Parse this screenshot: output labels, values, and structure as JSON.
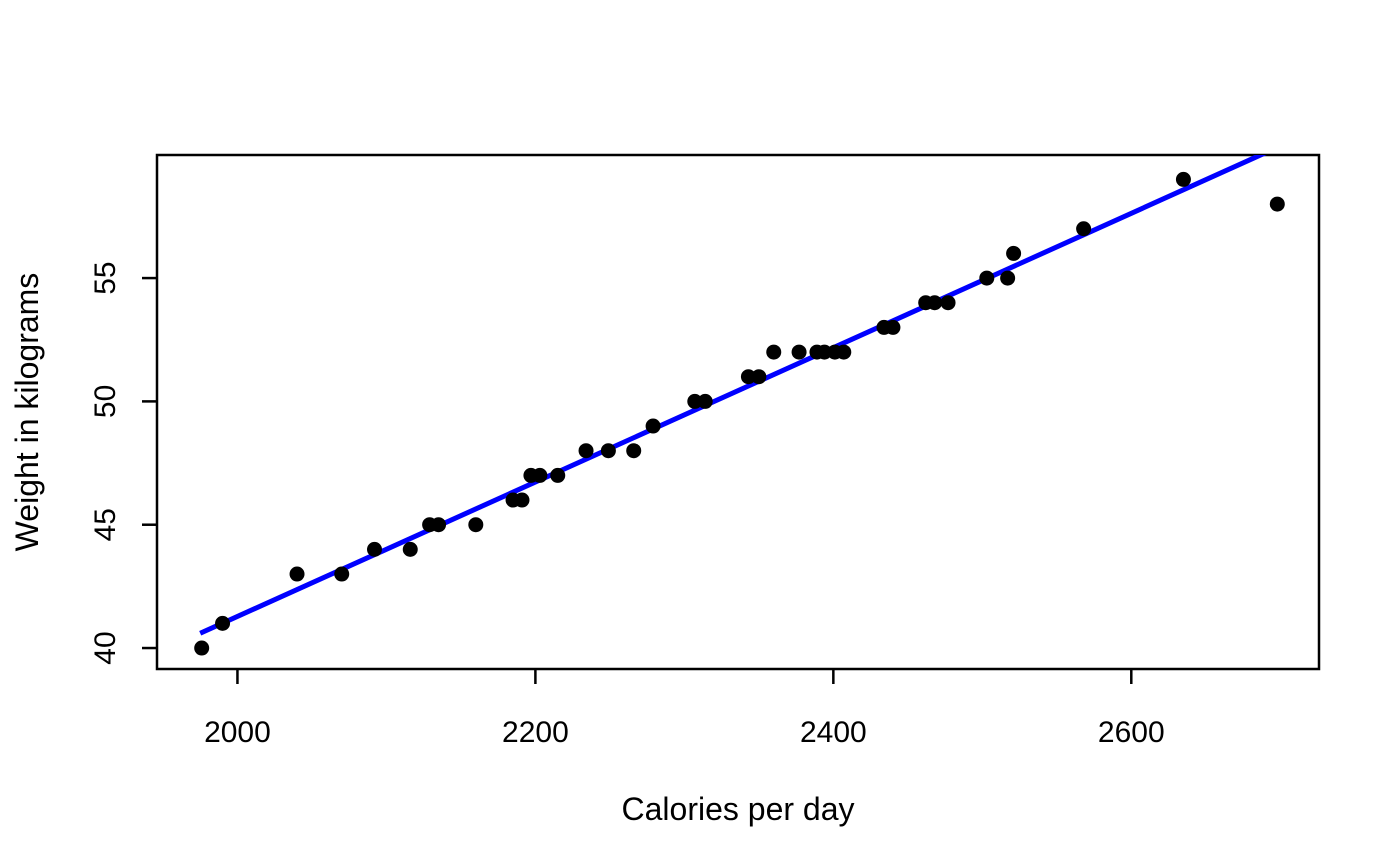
{
  "chart_data": {
    "type": "scatter",
    "title": "",
    "xlabel": "Calories per day",
    "ylabel": "Weight in kilograms",
    "x_ticks": [
      2000,
      2200,
      2400,
      2600
    ],
    "y_ticks": [
      40,
      45,
      50,
      55
    ],
    "xlim": [
      1946,
      2726
    ],
    "ylim": [
      39.15,
      59.99
    ],
    "grid": "off",
    "legend": "none",
    "point_color": "#000000",
    "point_radius": 7.5,
    "fit_line_color": "#0000ff",
    "fit_line_width": 5,
    "fit_line": {
      "x1": 1975,
      "y1": 40.6,
      "x2": 2700,
      "y2": 60.35
    },
    "points": [
      [
        1976,
        40
      ],
      [
        1990,
        41
      ],
      [
        2040,
        43
      ],
      [
        2070,
        43
      ],
      [
        2092,
        44
      ],
      [
        2116,
        44
      ],
      [
        2129,
        45
      ],
      [
        2135,
        45
      ],
      [
        2160,
        45
      ],
      [
        2185,
        46
      ],
      [
        2191,
        46
      ],
      [
        2197,
        47
      ],
      [
        2203,
        47
      ],
      [
        2215,
        47
      ],
      [
        2234,
        48
      ],
      [
        2249,
        48
      ],
      [
        2266,
        48
      ],
      [
        2279,
        49
      ],
      [
        2307,
        50
      ],
      [
        2314,
        50
      ],
      [
        2343,
        51
      ],
      [
        2350,
        51
      ],
      [
        2360,
        52
      ],
      [
        2377,
        52
      ],
      [
        2389,
        52
      ],
      [
        2394,
        52
      ],
      [
        2401,
        52
      ],
      [
        2407,
        52
      ],
      [
        2434,
        53
      ],
      [
        2440,
        53
      ],
      [
        2462,
        54
      ],
      [
        2468,
        54
      ],
      [
        2477,
        54
      ],
      [
        2503,
        55
      ],
      [
        2517,
        55
      ],
      [
        2521,
        56
      ],
      [
        2568,
        57
      ],
      [
        2635,
        59
      ],
      [
        2698,
        58
      ]
    ]
  }
}
